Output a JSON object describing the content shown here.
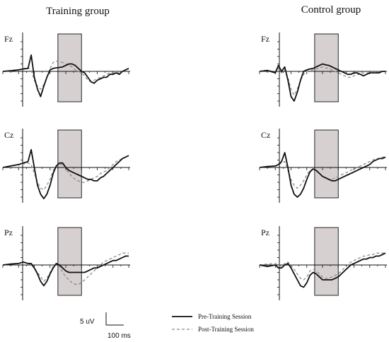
{
  "chart_data": {
    "type": "line",
    "groups": [
      {
        "title": "Training group"
      },
      {
        "title": "Control group"
      }
    ],
    "channels": [
      "Fz",
      "Cz",
      "Pz"
    ],
    "legend": {
      "position": "bottom-right",
      "entries": [
        {
          "name": "Pre-Training Session",
          "style": "solid",
          "color": "#111111"
        },
        {
          "name": "Post-Training Session",
          "style": "dashed",
          "color": "#8c8c8c"
        }
      ]
    },
    "scale_bar": {
      "amplitude_label": "5 uV",
      "time_label": "100 ms"
    },
    "xlim": [
      -100,
      700
    ],
    "ylim": [
      -10,
      10
    ],
    "highlight_window_ms": [
      250,
      400
    ],
    "grid": false,
    "panels": [
      {
        "group": 0,
        "channel": "Fz",
        "series": [
          {
            "name": "Pre-Training Session",
            "x": [
              -100,
              -50,
              0,
              30,
              60,
              80,
              100,
              120,
              140,
              160,
              180,
              200,
              220,
              240,
              260,
              280,
              300,
              320,
              340,
              360,
              380,
              400,
              420,
              440,
              460,
              480,
              500,
              520,
              540,
              560,
              580,
              600,
              620,
              640,
              660,
              680,
              700
            ],
            "y": [
              0,
              0.2,
              0.5,
              0.8,
              1,
              5.5,
              -2,
              -6,
              -8.5,
              -5,
              -2,
              0.5,
              1,
              1.2,
              1.3,
              1.5,
              2,
              2.5,
              2.5,
              2,
              1,
              0,
              -0.5,
              -2,
              -3.5,
              -4,
              -3,
              -2.5,
              -2,
              -2,
              -1,
              -1,
              -0.5,
              -1,
              0,
              0.5,
              1
            ]
          },
          {
            "name": "Post-Training Session",
            "x": [
              -100,
              -50,
              0,
              30,
              60,
              80,
              100,
              120,
              140,
              160,
              180,
              200,
              220,
              240,
              260,
              280,
              300,
              320,
              340,
              360,
              380,
              400,
              420,
              440,
              460,
              480,
              500,
              520,
              540,
              560,
              580,
              600,
              620,
              640,
              660,
              680,
              700
            ],
            "y": [
              0,
              0.3,
              0.6,
              1,
              1.2,
              0.5,
              -3,
              -5,
              -6,
              -4.5,
              -2,
              1,
              3,
              3.5,
              3,
              3,
              2.5,
              2,
              1.5,
              0.5,
              0,
              -0.5,
              -1.5,
              -3,
              -3.5,
              -3,
              -2.5,
              -2,
              -1.5,
              -1,
              -0.5,
              -0.5,
              -0.5,
              -0.5,
              0,
              0.5,
              1
            ]
          }
        ]
      },
      {
        "group": 1,
        "channel": "Fz",
        "series": [
          {
            "name": "Pre-Training Session",
            "x": [
              -100,
              -50,
              0,
              20,
              40,
              60,
              80,
              100,
              120,
              140,
              160,
              180,
              200,
              220,
              240,
              260,
              280,
              300,
              320,
              340,
              360,
              380,
              400,
              420,
              440,
              460,
              480,
              500,
              520,
              540,
              560,
              580,
              600,
              620,
              640,
              660,
              680,
              700
            ],
            "y": [
              0,
              0.3,
              -0.5,
              2,
              0,
              1.5,
              -3,
              -8.5,
              -10,
              -7,
              -3,
              0,
              0.5,
              0.8,
              1,
              1.5,
              2,
              2.5,
              2.2,
              2,
              1.5,
              1,
              0.5,
              0,
              -0.5,
              -1,
              -1,
              -0.5,
              -0.5,
              -1,
              -1.5,
              -1,
              -0.5,
              -0.5,
              -0.5,
              -0.5,
              0,
              0
            ]
          },
          {
            "name": "Post-Training Session",
            "x": [
              -100,
              -50,
              0,
              20,
              40,
              60,
              80,
              100,
              120,
              140,
              160,
              180,
              200,
              220,
              240,
              260,
              280,
              300,
              320,
              340,
              360,
              380,
              400,
              420,
              440,
              460,
              480,
              500,
              520,
              540,
              560,
              580,
              600,
              620,
              640,
              660,
              680,
              700
            ],
            "y": [
              0,
              0.4,
              -0.2,
              1,
              -0.5,
              0.5,
              -2,
              -6,
              -8,
              -6,
              -3,
              -1,
              0,
              0.3,
              0.5,
              0.8,
              1.2,
              1.5,
              1.2,
              1,
              0.5,
              0,
              -0.5,
              -1,
              -1.5,
              -2,
              -2,
              -1.5,
              -1,
              -1,
              -0.5,
              -0.5,
              -0.5,
              -0.5,
              -0.5,
              0,
              0,
              0
            ]
          }
        ]
      },
      {
        "group": 0,
        "channel": "Cz",
        "series": [
          {
            "name": "Pre-Training Session",
            "x": [
              -100,
              -50,
              0,
              30,
              60,
              80,
              100,
              120,
              140,
              160,
              180,
              200,
              220,
              240,
              260,
              280,
              300,
              320,
              340,
              360,
              380,
              400,
              420,
              440,
              460,
              480,
              500,
              520,
              540,
              560,
              580,
              600,
              620,
              640,
              660,
              680,
              700
            ],
            "y": [
              0,
              0.5,
              1,
              1.5,
              2,
              6,
              0,
              -6,
              -9,
              -10.5,
              -9,
              -6,
              -2,
              0.5,
              1.5,
              1.5,
              0,
              -1,
              -1.5,
              -2,
              -2.5,
              -3,
              -3.5,
              -4,
              -4,
              -4.5,
              -4.5,
              -3.5,
              -3,
              -2,
              -1,
              0,
              1,
              2,
              3,
              3.5,
              4
            ]
          },
          {
            "name": "Post-Training Session",
            "x": [
              -100,
              -50,
              0,
              30,
              60,
              80,
              100,
              120,
              140,
              160,
              180,
              200,
              220,
              240,
              260,
              280,
              300,
              320,
              340,
              360,
              380,
              400,
              420,
              440,
              460,
              480,
              500,
              520,
              540,
              560,
              580,
              600,
              620,
              640,
              660,
              680,
              700
            ],
            "y": [
              0,
              0.5,
              0.8,
              1.2,
              1.5,
              1,
              -2,
              -5,
              -7,
              -7.5,
              -6,
              -4,
              -1,
              0.5,
              1,
              1,
              -0.5,
              -2,
              -3,
              -4,
              -4.5,
              -5,
              -5,
              -4.5,
              -4,
              -3.5,
              -3,
              -2,
              -1.5,
              -1,
              0,
              1,
              2,
              2.5,
              3,
              3.5,
              4
            ]
          }
        ]
      },
      {
        "group": 1,
        "channel": "Cz",
        "series": [
          {
            "name": "Pre-Training Session",
            "x": [
              -100,
              -50,
              0,
              20,
              40,
              60,
              80,
              100,
              120,
              140,
              160,
              180,
              200,
              220,
              240,
              260,
              280,
              300,
              320,
              340,
              360,
              380,
              400,
              420,
              440,
              460,
              480,
              500,
              520,
              540,
              560,
              580,
              600,
              620,
              640,
              660,
              680,
              700
            ],
            "y": [
              0,
              0.3,
              0.5,
              1,
              2,
              5,
              0,
              -6,
              -9,
              -10,
              -9,
              -7,
              -4,
              -1.5,
              -0.5,
              -1,
              -2,
              -3,
              -3.5,
              -4,
              -4.5,
              -4.5,
              -4,
              -3.5,
              -3,
              -2.5,
              -2,
              -1.5,
              -1,
              -0.5,
              0,
              0.5,
              1,
              2,
              2.5,
              3,
              3,
              3.5
            ]
          },
          {
            "name": "Post-Training Session",
            "x": [
              -100,
              -50,
              0,
              20,
              40,
              60,
              80,
              100,
              120,
              140,
              160,
              180,
              200,
              220,
              240,
              260,
              280,
              300,
              320,
              340,
              360,
              380,
              400,
              420,
              440,
              460,
              480,
              500,
              520,
              540,
              560,
              580,
              600,
              620,
              640,
              660,
              680,
              700
            ],
            "y": [
              0,
              0.3,
              0.5,
              1,
              1.5,
              2,
              -1,
              -4,
              -6,
              -7,
              -6,
              -4.5,
              -2.5,
              -1,
              -0.5,
              -1,
              -2,
              -3,
              -3.5,
              -4,
              -4,
              -3.5,
              -3,
              -2.5,
              -2,
              -1.5,
              -1,
              -0.5,
              0,
              0.5,
              1,
              1.5,
              2,
              2.5,
              3,
              3,
              3.5,
              3.5
            ]
          }
        ]
      },
      {
        "group": 0,
        "channel": "Pz",
        "series": [
          {
            "name": "Pre-Training Session",
            "x": [
              -100,
              -50,
              0,
              30,
              60,
              80,
              100,
              120,
              140,
              160,
              180,
              200,
              220,
              240,
              260,
              280,
              300,
              320,
              340,
              360,
              380,
              400,
              420,
              440,
              460,
              480,
              500,
              520,
              540,
              560,
              580,
              600,
              620,
              640,
              660,
              680,
              700
            ],
            "y": [
              0,
              0.3,
              0.5,
              1,
              0.5,
              0.5,
              -1,
              -3,
              -5.5,
              -7,
              -5.5,
              -3,
              -1,
              0.5,
              0,
              -1,
              -2,
              -2.5,
              -2.5,
              -2.5,
              -2.5,
              -2.5,
              -2.5,
              -2,
              -1.5,
              -1,
              -1,
              -0.5,
              0,
              0.5,
              1,
              1.5,
              1.5,
              2,
              2.5,
              3,
              3
            ]
          },
          {
            "name": "Post-Training Session",
            "x": [
              -100,
              -50,
              0,
              30,
              60,
              80,
              100,
              120,
              140,
              160,
              180,
              200,
              220,
              240,
              260,
              280,
              300,
              320,
              340,
              360,
              380,
              400,
              420,
              440,
              460,
              480,
              500,
              520,
              540,
              560,
              580,
              600,
              620,
              640,
              660,
              680,
              700
            ],
            "y": [
              0,
              0.3,
              0.5,
              0.8,
              0.5,
              0,
              -1,
              -2.5,
              -4,
              -5.5,
              -4.5,
              -2.5,
              -0.5,
              0.5,
              -0.5,
              -2.5,
              -4,
              -5,
              -6,
              -6.5,
              -6.5,
              -6,
              -5,
              -4,
              -3,
              -2,
              -1,
              0,
              1,
              1.5,
              2,
              2.5,
              3,
              3.5,
              4,
              4,
              4
            ]
          }
        ]
      },
      {
        "group": 1,
        "channel": "Pz",
        "series": [
          {
            "name": "Pre-Training Session",
            "x": [
              -100,
              -50,
              0,
              20,
              40,
              60,
              80,
              100,
              120,
              140,
              160,
              180,
              200,
              220,
              240,
              260,
              280,
              300,
              320,
              340,
              360,
              380,
              400,
              420,
              440,
              460,
              480,
              500,
              520,
              540,
              560,
              580,
              600,
              620,
              640,
              660,
              680,
              700
            ],
            "y": [
              0,
              -0.5,
              0,
              -1,
              -1,
              0,
              0.5,
              -1,
              -3,
              -5,
              -7,
              -7.5,
              -6,
              -3.5,
              -2.5,
              -3,
              -4,
              -5,
              -5,
              -5,
              -5,
              -4.5,
              -4,
              -3,
              -2,
              -1,
              0,
              0.5,
              1,
              1.5,
              2,
              2,
              2.5,
              2.5,
              3,
              3,
              3.5,
              4
            ]
          },
          {
            "name": "Post-Training Session",
            "x": [
              -100,
              -50,
              0,
              20,
              40,
              60,
              80,
              100,
              120,
              140,
              160,
              180,
              200,
              220,
              240,
              260,
              280,
              300,
              320,
              340,
              360,
              380,
              400,
              420,
              440,
              460,
              480,
              500,
              520,
              540,
              560,
              580,
              600,
              620,
              640,
              660,
              680,
              700
            ],
            "y": [
              0,
              0.3,
              0.5,
              0,
              -0.5,
              0.5,
              1,
              0,
              -1.5,
              -3,
              -4.5,
              -5,
              -4,
              -2,
              -1.5,
              -2,
              -3,
              -4,
              -4.5,
              -4.5,
              -4,
              -3.5,
              -3,
              -2,
              -1,
              0,
              1,
              1.5,
              2,
              2.5,
              3,
              3,
              3.5,
              3.5,
              4,
              4,
              4,
              4
            ]
          }
        ]
      }
    ]
  }
}
